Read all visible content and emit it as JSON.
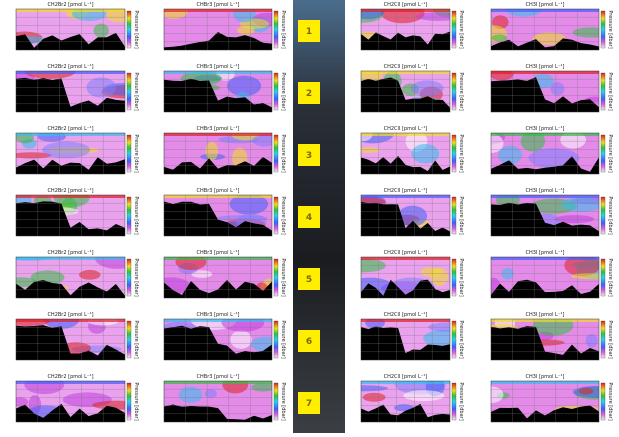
{
  "panel_titles": [
    "CH2Br2 [pmol L⁻¹]",
    "CHBr3 [pmol L⁻¹]",
    "CH2ClI [pmol L⁻¹]",
    "CH3I [pmol L⁻¹]"
  ],
  "y_axis_label": "Pressure [dbar]",
  "section_labels": [
    "1",
    "2",
    "3",
    "4",
    "5",
    "6",
    "7"
  ]
}
